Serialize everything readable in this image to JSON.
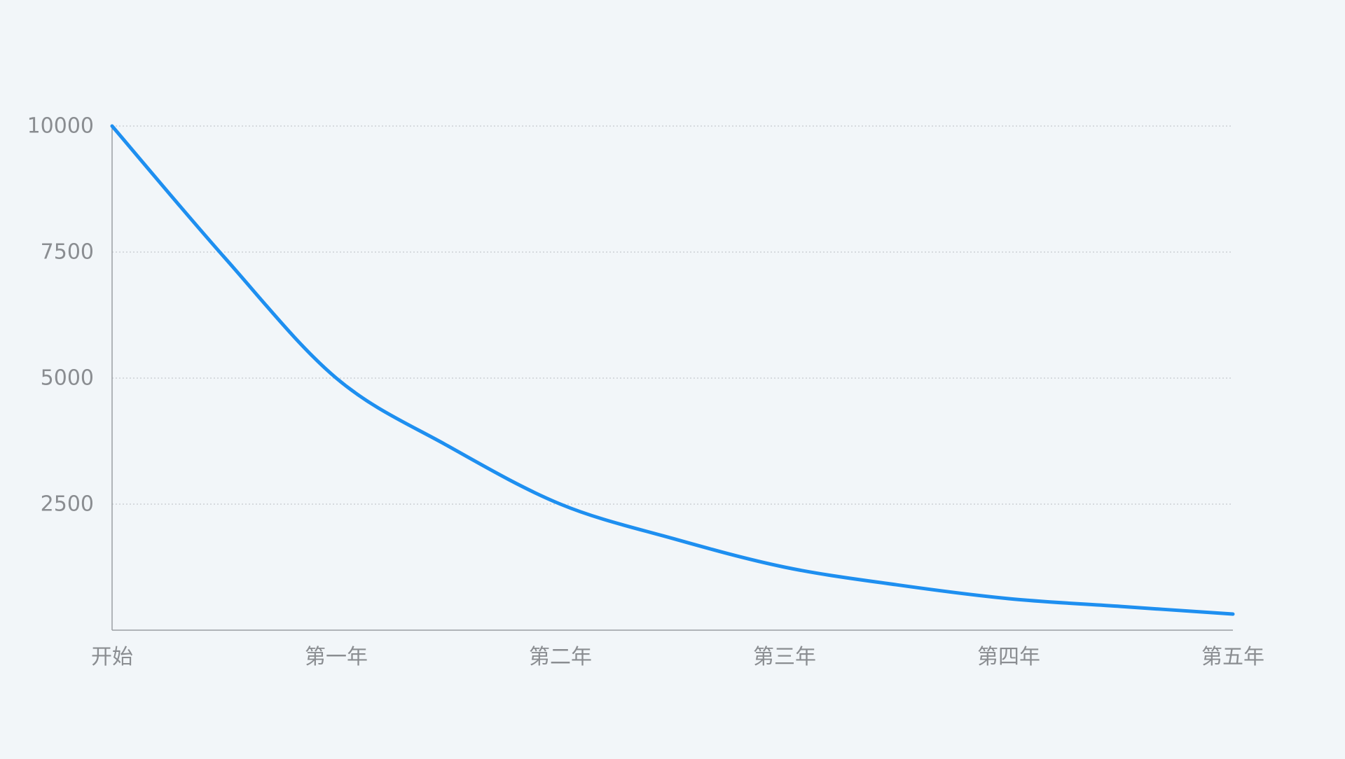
{
  "chart_data": {
    "type": "line",
    "title": "",
    "xlabel": "",
    "ylabel": "",
    "categories": [
      "开始",
      "第一年",
      "第二年",
      "第三年",
      "第四年",
      "第五年"
    ],
    "y_ticks": [
      10000,
      7500,
      5000,
      2500
    ],
    "ylim": [
      0,
      10000
    ],
    "grid": true,
    "legend": "none",
    "colors": {
      "line": "#1e8ff0",
      "background": "#f2f6f9",
      "grid": "#b9bdc2",
      "axis": "#9a9ea3",
      "tick_text": "#8a8d91"
    },
    "series": [
      {
        "values": [
          10000,
          5000,
          2500,
          1250,
          625,
          320
        ],
        "curve_samples": [
          {
            "x": 0.0,
            "y": 10000
          },
          {
            "x": 0.5,
            "y": 7400
          },
          {
            "x": 1.0,
            "y": 5000
          },
          {
            "x": 1.5,
            "y": 3650
          },
          {
            "x": 2.0,
            "y": 2500
          },
          {
            "x": 2.5,
            "y": 1820
          },
          {
            "x": 3.0,
            "y": 1250
          },
          {
            "x": 3.5,
            "y": 900
          },
          {
            "x": 4.0,
            "y": 625
          },
          {
            "x": 4.5,
            "y": 470
          },
          {
            "x": 5.0,
            "y": 320
          }
        ]
      }
    ]
  }
}
